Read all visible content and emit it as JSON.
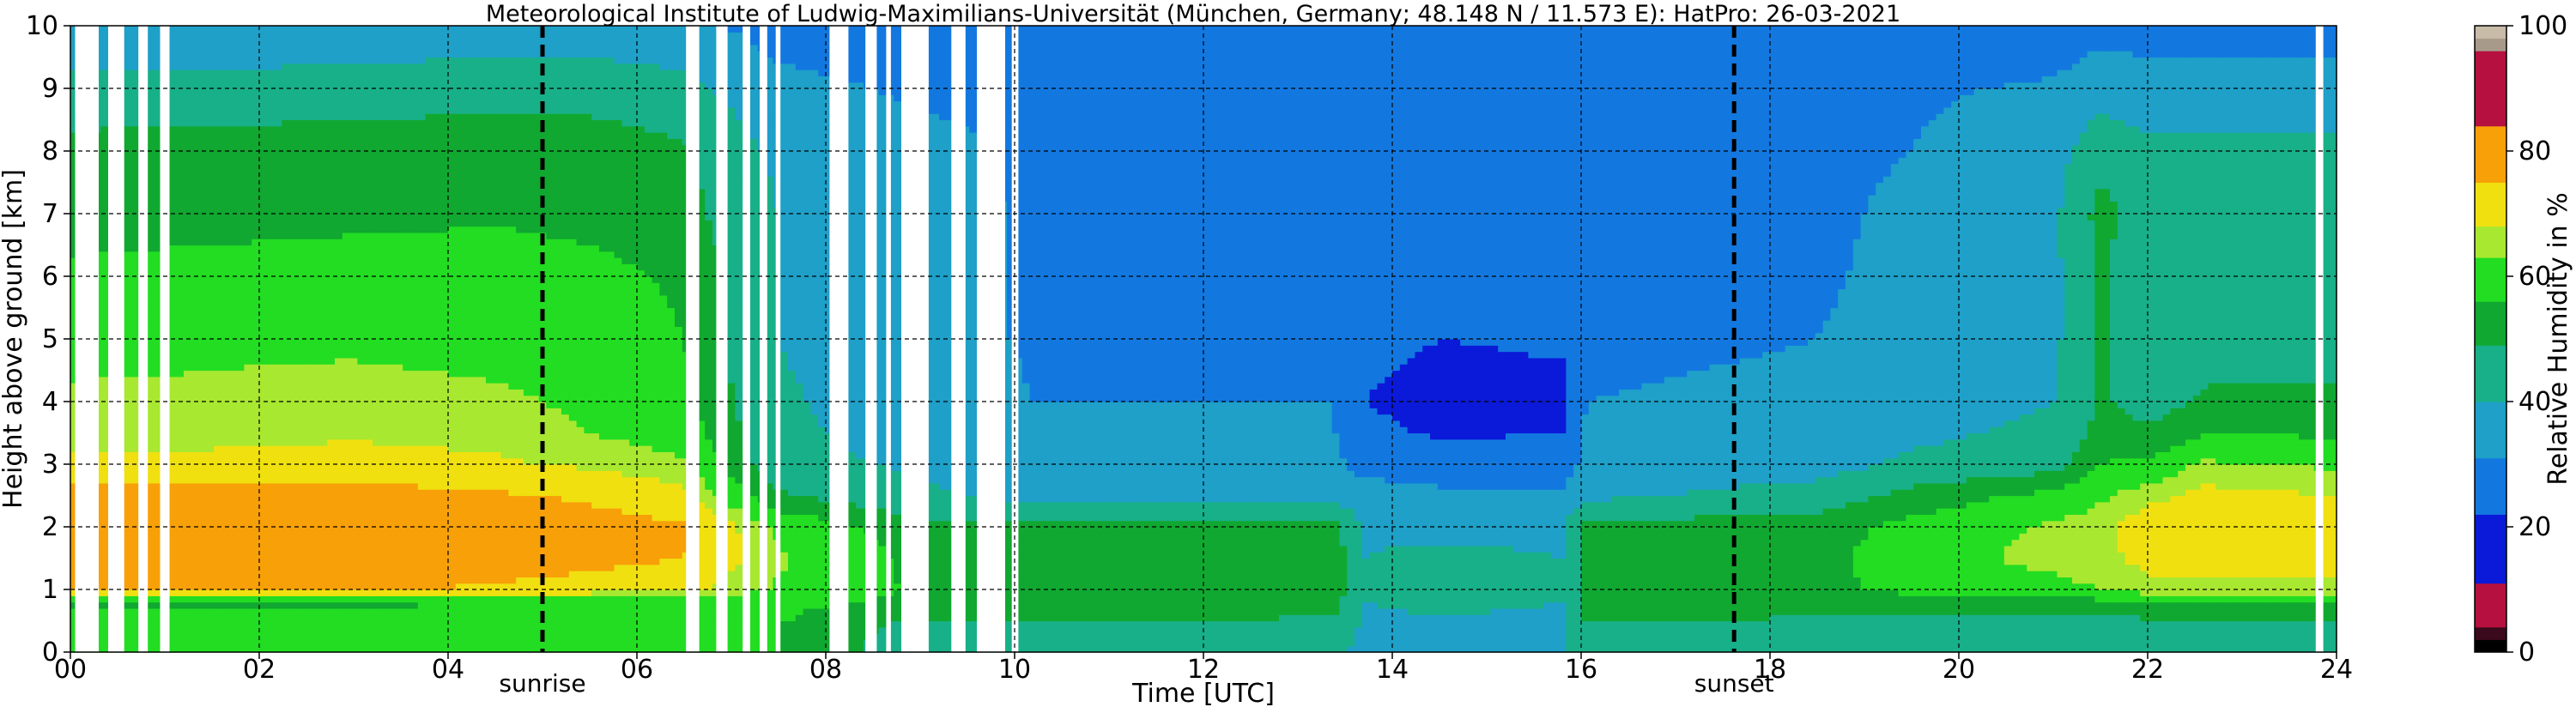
{
  "chart_data": {
    "type": "heatmap",
    "title": "Meteorological Institute of Ludwig-Maximilians-Universität (München, Germany; 48.148 N / 11.573 E):    HatPro: 26-03-2021",
    "xlabel": "Time [UTC]",
    "ylabel": "Height above ground [km]",
    "xlim": [
      0,
      24
    ],
    "ylim": [
      0,
      10
    ],
    "x_ticks": [
      0,
      2,
      4,
      6,
      8,
      10,
      12,
      14,
      16,
      18,
      20,
      22,
      24
    ],
    "x_tick_labels": [
      "00",
      "02",
      "04",
      "06",
      "08",
      "10",
      "12",
      "14",
      "16",
      "18",
      "20",
      "22",
      "24"
    ],
    "y_ticks": [
      0,
      1,
      2,
      3,
      4,
      5,
      6,
      7,
      8,
      9,
      10
    ],
    "y_tick_labels": [
      "0",
      "1",
      "2",
      "3",
      "4",
      "5",
      "6",
      "7",
      "8",
      "9",
      "10"
    ],
    "grid": true,
    "colorbar": {
      "label": "Relative Humidity in %",
      "range": [
        0,
        100
      ],
      "ticks": [
        0,
        20,
        40,
        60,
        80,
        100
      ],
      "tick_labels": [
        "0",
        "20",
        "40",
        "60",
        "80",
        "100"
      ],
      "segments": [
        {
          "from": 0,
          "to": 2,
          "color": "#000000"
        },
        {
          "from": 2,
          "to": 4,
          "color": "#3a0a1c"
        },
        {
          "from": 4,
          "to": 11,
          "color": "#b5103f"
        },
        {
          "from": 11,
          "to": 22,
          "color": "#0b1ad8"
        },
        {
          "from": 22,
          "to": 31,
          "color": "#1278e0"
        },
        {
          "from": 31,
          "to": 40,
          "color": "#1ea0c8"
        },
        {
          "from": 40,
          "to": 49,
          "color": "#18b088"
        },
        {
          "from": 49,
          "to": 56,
          "color": "#10a830"
        },
        {
          "from": 56,
          "to": 63,
          "color": "#22dd22"
        },
        {
          "from": 63,
          "to": 68,
          "color": "#a8e830"
        },
        {
          "from": 68,
          "to": 75,
          "color": "#f0e010"
        },
        {
          "from": 75,
          "to": 84,
          "color": "#f8a008"
        },
        {
          "from": 84,
          "to": 96,
          "color": "#b5103f"
        },
        {
          "from": 96,
          "to": 98,
          "color": "#a89a8a"
        },
        {
          "from": 98,
          "to": 100,
          "color": "#c8bca8"
        }
      ]
    },
    "annotations": [
      {
        "text": "sunrise",
        "x": 5.0,
        "linestyle": "dashed"
      },
      {
        "text": "sunset",
        "x": 17.62,
        "linestyle": "dashed"
      }
    ],
    "gaps": [
      [
        0.05,
        0.3
      ],
      [
        0.4,
        0.57
      ],
      [
        0.72,
        0.82
      ],
      [
        0.95,
        1.05
      ],
      [
        6.52,
        6.66
      ],
      [
        6.84,
        6.96
      ],
      [
        7.12,
        7.2
      ],
      [
        7.3,
        7.38
      ],
      [
        7.47,
        7.52
      ],
      [
        8.04,
        8.24
      ],
      [
        8.42,
        8.54
      ],
      [
        8.64,
        8.69
      ],
      [
        8.8,
        9.09
      ],
      [
        9.33,
        9.48
      ],
      [
        9.6,
        9.9
      ],
      [
        9.97,
        10.04
      ],
      [
        23.78,
        23.86
      ]
    ],
    "humidity_profiles": {
      "heights_km": [
        0,
        0.4,
        0.8,
        1.0,
        1.5,
        2.0,
        2.5,
        3.0,
        3.5,
        4.0,
        5.0,
        6.0,
        7.0,
        8.0,
        9.0,
        10.0
      ],
      "columns": [
        {
          "time": 0.0,
          "rh": [
            60,
            60,
            55,
            75,
            80,
            80,
            78,
            70,
            66,
            64,
            61,
            58,
            52,
            52,
            43,
            33
          ]
        },
        {
          "time": 1.5,
          "rh": [
            60,
            60,
            55,
            76,
            80,
            80,
            78,
            70,
            66,
            64,
            62,
            59,
            53,
            53,
            43,
            33
          ]
        },
        {
          "time": 3.0,
          "rh": [
            60,
            60,
            55,
            76,
            80,
            80,
            78,
            71,
            67,
            65,
            62,
            60,
            54,
            54,
            44,
            34
          ]
        },
        {
          "time": 4.5,
          "rh": [
            60,
            60,
            56,
            74,
            79,
            79,
            76,
            69,
            66,
            64,
            61,
            60,
            55,
            55,
            45,
            35
          ]
        },
        {
          "time": 5.5,
          "rh": [
            60,
            60,
            56,
            72,
            77,
            78,
            74,
            67,
            63,
            62,
            60,
            58,
            54,
            54,
            45,
            35
          ]
        },
        {
          "time": 6.5,
          "rh": [
            60,
            60,
            57,
            70,
            75,
            76,
            70,
            64,
            60,
            58,
            56,
            55,
            52,
            50,
            43,
            33
          ]
        },
        {
          "time": 7.5,
          "rh": [
            56,
            56,
            58,
            62,
            64,
            62,
            50,
            44,
            42,
            41,
            40,
            40,
            40,
            38,
            33,
            28
          ]
        },
        {
          "time": 9.0,
          "rh": [
            44,
            46,
            54,
            55,
            54,
            52,
            42,
            38,
            36,
            36,
            35,
            34,
            34,
            33,
            30,
            26
          ]
        },
        {
          "time": 10.2,
          "rh": [
            42,
            48,
            52,
            53,
            53,
            51,
            37,
            33,
            31,
            31,
            30,
            30,
            30,
            30,
            29,
            25
          ]
        },
        {
          "time": 13.4,
          "rh": [
            41,
            47,
            52,
            53,
            53,
            51,
            37,
            33,
            31,
            31,
            30,
            30,
            30,
            30,
            29,
            25
          ]
        },
        {
          "time": 13.7,
          "rh": [
            38,
            38,
            40,
            40,
            40,
            39,
            35,
            28,
            24,
            22,
            24,
            25,
            25,
            24,
            24,
            22
          ]
        },
        {
          "time": 14.5,
          "rh": [
            38,
            38,
            42,
            44,
            42,
            38,
            33,
            26,
            21,
            19,
            22,
            24,
            24,
            24,
            24,
            22
          ]
        },
        {
          "time": 15.8,
          "rh": [
            38,
            38,
            40,
            40,
            40,
            38,
            33,
            26,
            22,
            20,
            23,
            24,
            24,
            24,
            24,
            22
          ]
        },
        {
          "time": 16.05,
          "rh": [
            44,
            48,
            52,
            53,
            53,
            52,
            38,
            34,
            32,
            31,
            30,
            30,
            30,
            30,
            29,
            25
          ]
        },
        {
          "time": 18.5,
          "rh": [
            42,
            47,
            52,
            54,
            54,
            53,
            44,
            36,
            33,
            32,
            31,
            30,
            30,
            30,
            29,
            25
          ]
        },
        {
          "time": 19.5,
          "rh": [
            40,
            44,
            52,
            58,
            60,
            58,
            52,
            42,
            38,
            36,
            34,
            33,
            32,
            31,
            30,
            26
          ]
        },
        {
          "time": 21.0,
          "rh": [
            40,
            44,
            53,
            61,
            65,
            64,
            58,
            46,
            42,
            40,
            38,
            38,
            38,
            36,
            32,
            26
          ]
        },
        {
          "time": 21.5,
          "rh": [
            40,
            44,
            54,
            63,
            66,
            66,
            62,
            56,
            52,
            50,
            50,
            50,
            52,
            46,
            36,
            28
          ]
        },
        {
          "time": 22.0,
          "rh": [
            40,
            45,
            56,
            66,
            70,
            72,
            66,
            58,
            50,
            46,
            44,
            43,
            44,
            42,
            35,
            27
          ]
        },
        {
          "time": 22.6,
          "rh": [
            41,
            46,
            54,
            66,
            72,
            73,
            70,
            64,
            56,
            50,
            46,
            44,
            44,
            42,
            35,
            27
          ]
        },
        {
          "time": 24.0,
          "rh": [
            41,
            46,
            55,
            66,
            70,
            70,
            68,
            62,
            55,
            50,
            46,
            44,
            44,
            42,
            35,
            27
          ]
        }
      ]
    }
  }
}
